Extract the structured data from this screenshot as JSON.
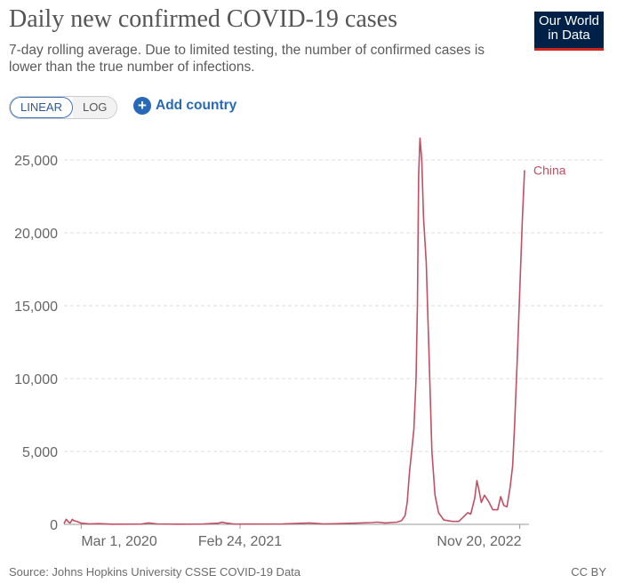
{
  "header": {
    "title": "Daily new confirmed COVID-19 cases",
    "subtitle": "7-day rolling average. Due to limited testing, the number of confirmed cases is lower than the true number of infections.",
    "logo_line1": "Our World",
    "logo_line2": "in Data"
  },
  "controls": {
    "linear_label": "LINEAR",
    "log_label": "LOG",
    "add_country_label": "Add country"
  },
  "footer": {
    "source": "Source: Johns Hopkins University CSSE COVID-19 Data",
    "license": "CC BY"
  },
  "colors": {
    "series": "#c15065",
    "grid": "#dddddd",
    "axis_text": "#666666"
  },
  "chart_data": {
    "type": "line",
    "title": "Daily new confirmed COVID-19 cases",
    "xlabel": "",
    "ylabel": "",
    "x_start": "2020-01-22",
    "x_end": "2022-12-11",
    "ylim": [
      0,
      25000
    ],
    "yticks": [
      {
        "value": 0,
        "label": "0"
      },
      {
        "value": 5000,
        "label": "5,000"
      },
      {
        "value": 10000,
        "label": "10,000"
      },
      {
        "value": 15000,
        "label": "15,000"
      },
      {
        "value": 20000,
        "label": "20,000"
      },
      {
        "value": 25000,
        "label": "25,000"
      }
    ],
    "xticks": [
      {
        "date": "2020-03-01",
        "label": "Mar 1, 2020"
      },
      {
        "date": "2021-02-24",
        "label": "Feb 24, 2021"
      },
      {
        "date": "2022-11-20",
        "label": "Nov 20, 2022"
      }
    ],
    "grid": true,
    "series": [
      {
        "name": "China",
        "points": [
          [
            "2020-01-22",
            50
          ],
          [
            "2020-01-27",
            350
          ],
          [
            "2020-02-01",
            150
          ],
          [
            "2020-02-05",
            100
          ],
          [
            "2020-02-10",
            350
          ],
          [
            "2020-02-13",
            250
          ],
          [
            "2020-02-20",
            200
          ],
          [
            "2020-03-01",
            80
          ],
          [
            "2020-03-20",
            30
          ],
          [
            "2020-04-10",
            50
          ],
          [
            "2020-05-10",
            10
          ],
          [
            "2020-07-15",
            20
          ],
          [
            "2020-08-01",
            100
          ],
          [
            "2020-08-20",
            30
          ],
          [
            "2020-10-01",
            15
          ],
          [
            "2020-12-01",
            20
          ],
          [
            "2021-01-05",
            80
          ],
          [
            "2021-01-15",
            140
          ],
          [
            "2021-01-25",
            80
          ],
          [
            "2021-02-10",
            20
          ],
          [
            "2021-04-01",
            20
          ],
          [
            "2021-06-01",
            30
          ],
          [
            "2021-08-01",
            100
          ],
          [
            "2021-09-01",
            30
          ],
          [
            "2021-10-01",
            40
          ],
          [
            "2021-11-10",
            80
          ],
          [
            "2021-12-20",
            120
          ],
          [
            "2022-01-01",
            150
          ],
          [
            "2022-01-20",
            100
          ],
          [
            "2022-02-15",
            150
          ],
          [
            "2022-02-25",
            250
          ],
          [
            "2022-03-05",
            600
          ],
          [
            "2022-03-10",
            1500
          ],
          [
            "2022-03-15",
            3500
          ],
          [
            "2022-03-20",
            5000
          ],
          [
            "2022-03-25",
            6500
          ],
          [
            "2022-03-30",
            10000
          ],
          [
            "2022-04-02",
            15000
          ],
          [
            "2022-04-05",
            24000
          ],
          [
            "2022-04-08",
            26500
          ],
          [
            "2022-04-12",
            25000
          ],
          [
            "2022-04-16",
            21000
          ],
          [
            "2022-04-22",
            18000
          ],
          [
            "2022-04-28",
            12000
          ],
          [
            "2022-05-05",
            5000
          ],
          [
            "2022-05-12",
            2000
          ],
          [
            "2022-05-20",
            800
          ],
          [
            "2022-06-01",
            300
          ],
          [
            "2022-06-20",
            200
          ],
          [
            "2022-07-05",
            200
          ],
          [
            "2022-07-15",
            500
          ],
          [
            "2022-07-25",
            800
          ],
          [
            "2022-08-01",
            700
          ],
          [
            "2022-08-10",
            1800
          ],
          [
            "2022-08-15",
            3000
          ],
          [
            "2022-08-20",
            2300
          ],
          [
            "2022-08-25",
            1500
          ],
          [
            "2022-09-01",
            2000
          ],
          [
            "2022-09-10",
            1600
          ],
          [
            "2022-09-20",
            1000
          ],
          [
            "2022-10-01",
            1000
          ],
          [
            "2022-10-08",
            1900
          ],
          [
            "2022-10-15",
            1300
          ],
          [
            "2022-10-22",
            1200
          ],
          [
            "2022-10-29",
            2500
          ],
          [
            "2022-11-04",
            4000
          ],
          [
            "2022-11-08",
            6500
          ],
          [
            "2022-11-14",
            11000
          ],
          [
            "2022-11-20",
            16000
          ],
          [
            "2022-11-26",
            21000
          ],
          [
            "2022-12-01",
            24300
          ]
        ]
      }
    ]
  }
}
